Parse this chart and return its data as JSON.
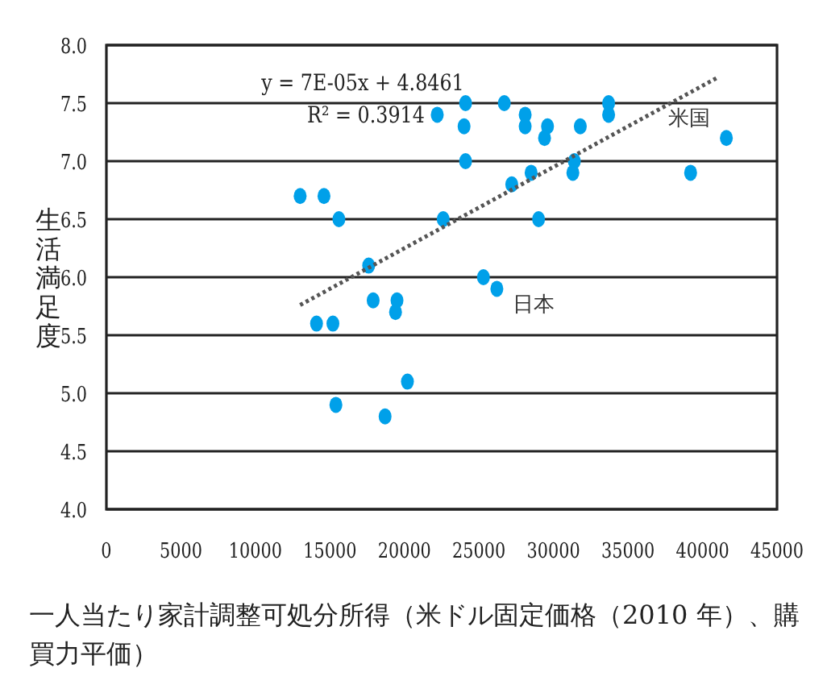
{
  "chart_data": {
    "type": "scatter",
    "xlabel": "一人当たり家計調整可処分所得（米ドル固定価格（2010 年）、購買力平価）",
    "ylabel": "生活満足度",
    "xlim": [
      0,
      45000
    ],
    "xticks": [
      0,
      5000,
      10000,
      15000,
      20000,
      25000,
      30000,
      35000,
      40000,
      45000
    ],
    "ylim": [
      4.0,
      8.0
    ],
    "yticks": [
      {
        "value": 4.0,
        "label": "4.0"
      },
      {
        "value": 4.5,
        "label": "4.5"
      },
      {
        "value": 5.0,
        "label": "5.0"
      },
      {
        "value": 5.5,
        "label": "5.5"
      },
      {
        "value": 6.0,
        "label": "6.0"
      },
      {
        "value": 6.5,
        "label": "6.5"
      },
      {
        "value": 7.0,
        "label": "7.0"
      },
      {
        "value": 7.5,
        "label": "7.5"
      },
      {
        "value": 8.0,
        "label": "8.0"
      }
    ],
    "grid": "y",
    "marker": "circle",
    "series": [
      {
        "color": "#00a0e9",
        "x": [
          13000,
          14600,
          14100,
          15200,
          15400,
          15600,
          17600,
          17900,
          18700,
          19500,
          19400,
          20200,
          22200,
          22600,
          24100,
          24000,
          24100,
          26700,
          28100,
          28100,
          29600,
          29400,
          31800,
          33700,
          33700,
          27200,
          28500,
          31400,
          31300,
          29000,
          25300,
          26200,
          39200,
          41600
        ],
        "values": [
          6.7,
          6.7,
          5.6,
          5.6,
          4.9,
          6.5,
          6.1,
          5.8,
          4.8,
          5.8,
          5.7,
          5.1,
          7.4,
          6.5,
          7.5,
          7.3,
          7.0,
          7.5,
          7.4,
          7.3,
          7.3,
          7.2,
          7.3,
          7.5,
          7.4,
          6.8,
          6.9,
          7.0,
          6.9,
          6.5,
          6.0,
          5.9,
          6.9,
          7.2
        ]
      },
      {
        "type": "line",
        "color": "#555555",
        "line_style": "dotted",
        "marker": "none",
        "x": [
          13000,
          41000
        ],
        "values": [
          5.76,
          7.72
        ]
      }
    ],
    "annotations": [
      "y = 7E-05x + 4.8461",
      "R² = 0.3914",
      {
        "text": "日本",
        "x": 26200,
        "y": 5.9
      },
      {
        "text": "米国",
        "x": 41600,
        "y": 7.2
      }
    ]
  }
}
